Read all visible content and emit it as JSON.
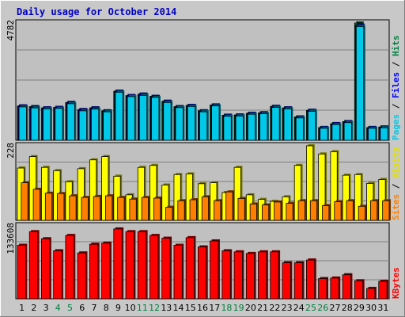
{
  "chart_data": {
    "type": "bar",
    "title": "Daily usage for October 2014",
    "categories": [
      "1",
      "2",
      "3",
      "4",
      "5",
      "6",
      "7",
      "8",
      "9",
      "10",
      "11",
      "12",
      "13",
      "14",
      "15",
      "16",
      "17",
      "18",
      "19",
      "20",
      "21",
      "22",
      "23",
      "24",
      "25",
      "26",
      "27",
      "28",
      "29",
      "30",
      "31"
    ],
    "weekend_days": [
      4,
      5,
      11,
      12,
      18,
      19,
      25,
      26
    ],
    "panels": [
      {
        "id": "hits",
        "ymax_label": "4782",
        "ymax": 4782,
        "right_label": [
          {
            "text": "Pages",
            "color": "#00c8e8"
          },
          {
            "text": " / ",
            "color": "#000000"
          },
          {
            "text": "Files",
            "color": "#0000ff"
          },
          {
            "text": " / ",
            "color": "#000000"
          },
          {
            "text": "Hits",
            "color": "#008040"
          }
        ],
        "series": [
          {
            "name": "Hits",
            "color": "#008040",
            "values": [
              1400,
              1370,
              1320,
              1340,
              1540,
              1250,
              1320,
              1200,
              2000,
              1820,
              1880,
              1790,
              1590,
              1370,
              1420,
              1200,
              1440,
              1020,
              1030,
              1100,
              1120,
              1380,
              1320,
              950,
              1220,
              520,
              680,
              760,
              4782,
              520,
              540
            ]
          },
          {
            "name": "Files",
            "color": "#0000ff",
            "values": [
              1400,
              1370,
              1320,
              1340,
              1540,
              1250,
              1320,
              1200,
              2000,
              1820,
              1880,
              1790,
              1590,
              1370,
              1420,
              1200,
              1440,
              1020,
              1030,
              1100,
              1120,
              1380,
              1320,
              950,
              1220,
              520,
              680,
              760,
              4700,
              520,
              540
            ]
          },
          {
            "name": "Pages",
            "color": "#00c8e8",
            "values": [
              1360,
              1320,
              1280,
              1300,
              1490,
              1200,
              1270,
              1160,
              1960,
              1780,
              1830,
              1750,
              1540,
              1330,
              1380,
              1160,
              1400,
              980,
              990,
              1060,
              1080,
              1340,
              1280,
              910,
              1180,
              490,
              640,
              720,
              4640,
              490,
              510
            ]
          }
        ]
      },
      {
        "id": "visits",
        "ymax_label": "228",
        "ymax": 228,
        "right_label": [
          {
            "text": "Sites",
            "color": "#ff8000"
          },
          {
            "text": " / ",
            "color": "#000000"
          },
          {
            "text": "Visits",
            "color": "#e0e000"
          }
        ],
        "series": [
          {
            "name": "Visits",
            "color": "#ffff00",
            "values": [
              160,
              195,
              162,
              152,
              118,
              158,
              185,
              195,
              135,
              78,
              162,
              168,
              108,
              140,
              142,
              112,
              115,
              85,
              162,
              78,
              64,
              58,
              72,
              168,
              228,
              203,
              210,
              138,
              140,
              113,
              125
            ]
          },
          {
            "name": "Sites",
            "color": "#ff8000",
            "values": [
              115,
              95,
              83,
              82,
              75,
              70,
              73,
              75,
              70,
              65,
              70,
              68,
              40,
              60,
              63,
              72,
              60,
              87,
              67,
              50,
              47,
              56,
              52,
              60,
              60,
              45,
              57,
              60,
              43,
              60,
              60
            ]
          }
        ]
      },
      {
        "id": "kbytes",
        "ymax_label": "133608",
        "ymax": 133608,
        "right_label": [
          {
            "text": "KBytes",
            "color": "#ff0000"
          }
        ],
        "series": [
          {
            "name": "KBytes",
            "color": "#ff0000",
            "values": [
              98000,
              123000,
              110000,
              88000,
              116000,
              84000,
              100000,
              102000,
              128000,
              123000,
              123000,
              116000,
              111000,
              98000,
              112000,
              95000,
              106000,
              88000,
              86000,
              83000,
              86000,
              86000,
              66000,
              66000,
              71000,
              37000,
              38000,
              44000,
              33000,
              19000,
              32000
            ]
          }
        ]
      }
    ]
  }
}
